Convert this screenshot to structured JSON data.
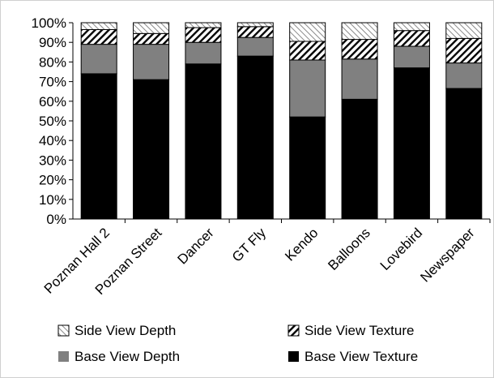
{
  "chart_data": {
    "type": "bar",
    "stacked": true,
    "percent": true,
    "categories": [
      "Poznan Hall 2",
      "Poznan Street",
      "Dancer",
      "GT Fly",
      "Kendo",
      "Balloons",
      "Lovebird",
      "Newspaper"
    ],
    "series": [
      {
        "name": "Base View Texture",
        "values": [
          74,
          71,
          79,
          83,
          52,
          61,
          77,
          66.5
        ],
        "fill": "#000000",
        "pattern": "solid"
      },
      {
        "name": "Base View Depth",
        "values": [
          15,
          18,
          11,
          9.5,
          29,
          20.5,
          11,
          13
        ],
        "fill": "#808080",
        "pattern": "solid"
      },
      {
        "name": "Side View Texture",
        "values": [
          7.5,
          5.5,
          7.5,
          5.5,
          9.5,
          10,
          8,
          12.5
        ],
        "fill": "#ffffff",
        "pattern": "diagonal-dense"
      },
      {
        "name": "Side View Depth",
        "values": [
          3.5,
          5.5,
          2.5,
          2,
          9.5,
          8.5,
          4,
          8
        ],
        "fill": "#ffffff",
        "pattern": "diagonal-light"
      }
    ],
    "ylim": [
      0,
      100
    ],
    "yticks": [
      "0%",
      "10%",
      "20%",
      "30%",
      "40%",
      "50%",
      "60%",
      "70%",
      "80%",
      "90%",
      "100%"
    ],
    "grid": false,
    "legend": {
      "placement": "bottom",
      "order": [
        "Side View Depth",
        "Side View Texture",
        "Base View Depth",
        "Base View Texture"
      ]
    },
    "title": "",
    "xlabel": "",
    "ylabel": ""
  }
}
